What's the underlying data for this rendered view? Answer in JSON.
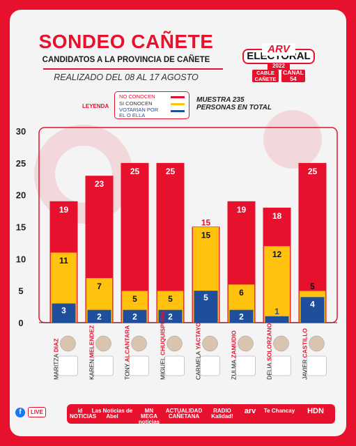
{
  "header": {
    "title": "SONDEO CAÑETE",
    "subtitle": "CANDIDATOS A LA PROVINCIA DE CAÑETE",
    "dates": "REALIZADO DEL 08 AL 17 AGOSTO"
  },
  "logo": {
    "arv": "ARV",
    "electoral": "ELECTORAL",
    "year": "2022",
    "channel1_line1": "CABLE",
    "channel1_line2": "CAÑETE",
    "channel2_line1": "CANAL",
    "channel2_line2": "54"
  },
  "legend": {
    "title": "LEYENDA",
    "items": [
      "NO CONOCEN",
      "SI CONOCEN",
      "VOTARIAN POR EL O ELLA"
    ]
  },
  "sample": {
    "line1": "MUESTRA 235",
    "line2": "PERSONAS EN TOTAL"
  },
  "colors": {
    "no_conocen": "#e8112d",
    "si_conocen": "#ffc20e",
    "votarian": "#1f4e9c",
    "brand": "#e8112d"
  },
  "chart_data": {
    "type": "bar",
    "stacked": false,
    "overlapping": true,
    "ylim": [
      0,
      30
    ],
    "yticks": [
      0,
      5,
      10,
      15,
      20,
      25,
      30
    ],
    "grid": false,
    "categories": [
      {
        "first": "MARITZA",
        "last": "DIAZ"
      },
      {
        "first": "KAREN",
        "last": "MELENDEZ"
      },
      {
        "first": "TONY",
        "last": "ALCANTARA"
      },
      {
        "first": "MIGUEL",
        "last": "CHUQUISPUMA"
      },
      {
        "first": "CARMELA",
        "last": "YACTAYO"
      },
      {
        "first": "ZULMA",
        "last": "ZAMUDIO"
      },
      {
        "first": "DELIA",
        "last": "SOLORZANO"
      },
      {
        "first": "JAVIER",
        "last": "CASTILLO"
      }
    ],
    "series": [
      {
        "name": "NO CONOCEN",
        "values": [
          19,
          23,
          25,
          25,
          15,
          19,
          18,
          25
        ]
      },
      {
        "name": "SI CONOCEN",
        "values": [
          11,
          7,
          5,
          5,
          15,
          6,
          12,
          5
        ]
      },
      {
        "name": "VOTARIAN POR EL O ELLA",
        "values": [
          3,
          2,
          2,
          2,
          5,
          2,
          1,
          4
        ]
      }
    ]
  },
  "footer": {
    "live": "LIVE",
    "facebook": "f",
    "items": [
      "id NOTICIAS",
      "Las Noticias de Abel",
      "MN MEGA noticias",
      "ACTUALIDAD CAÑETANA",
      "RADIO Kalidad!",
      "arv",
      "Te Chancay",
      "HDN"
    ]
  }
}
